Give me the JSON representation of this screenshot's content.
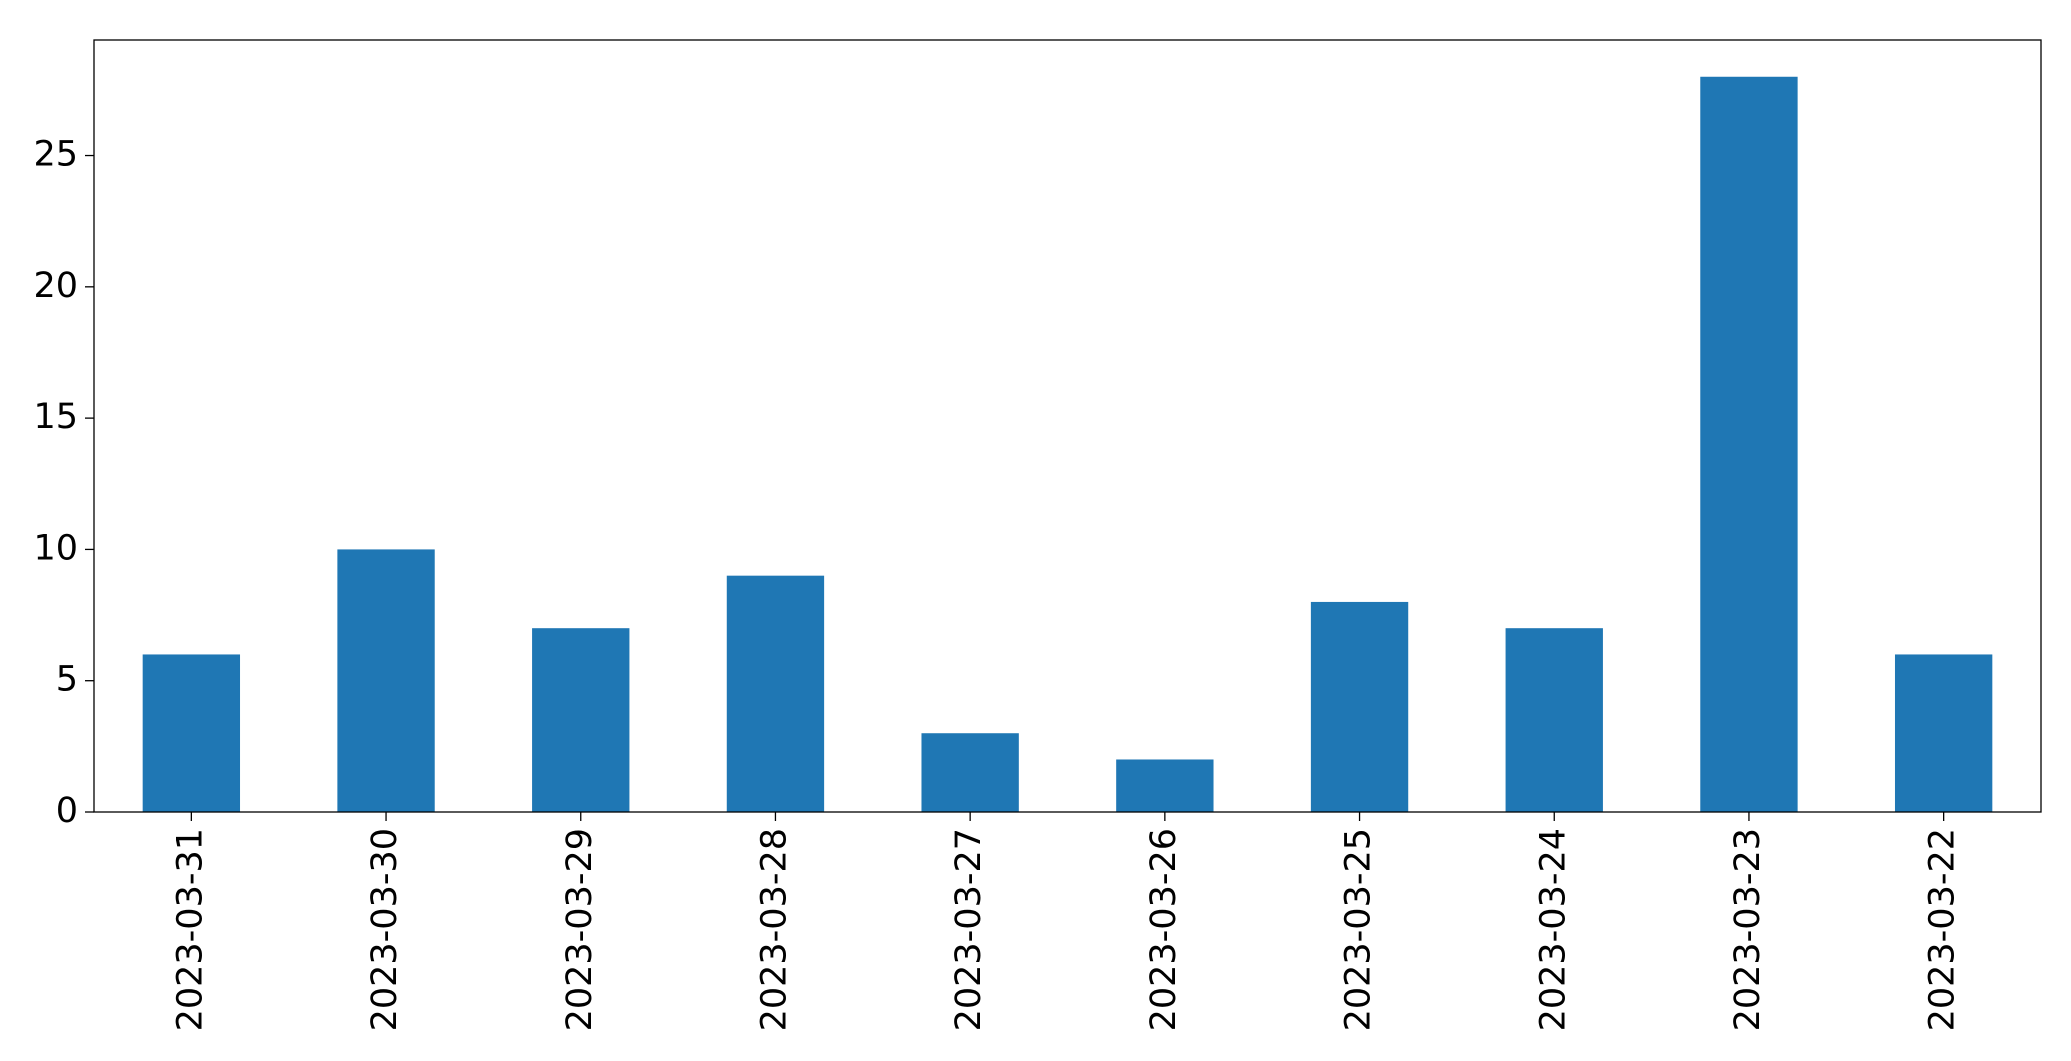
{
  "chart_data": {
    "type": "bar",
    "categories": [
      "2023-03-31",
      "2023-03-30",
      "2023-03-29",
      "2023-03-28",
      "2023-03-27",
      "2023-03-26",
      "2023-03-25",
      "2023-03-24",
      "2023-03-23",
      "2023-03-22"
    ],
    "values": [
      6,
      10,
      7,
      9,
      3,
      2,
      8,
      7,
      28,
      6
    ],
    "color": "#1f77b4",
    "ylim": [
      0,
      29.4
    ],
    "yticks": [
      0,
      5,
      10,
      15,
      20,
      25
    ],
    "grid": false
  }
}
